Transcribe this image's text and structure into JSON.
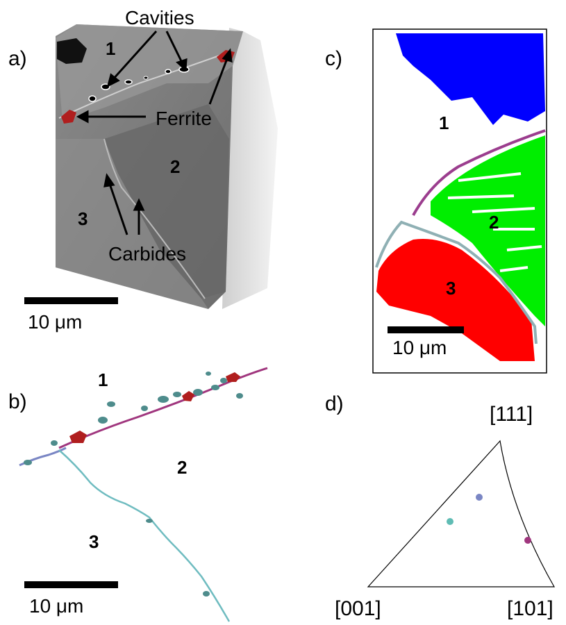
{
  "panel_a": {
    "letter": "a)",
    "annotations": {
      "cavities": "Cavities",
      "ferrite": "Ferrite",
      "carbides": "Carbides"
    },
    "regions": [
      "1",
      "2",
      "3"
    ],
    "scale_bar": "10 μm"
  },
  "panel_b": {
    "letter": "b)",
    "regions": [
      "1",
      "2",
      "3"
    ],
    "scale_bar": "10 μm"
  },
  "panel_c": {
    "letter": "c)",
    "regions": [
      "1",
      "2",
      "3"
    ],
    "scale_bar": "10 μm",
    "colors": {
      "grain_1": "#0000ff",
      "grain_2": "#00ee00",
      "grain_3": "#ff0000",
      "boundary_1_2": "#9b3d8e",
      "boundary_2_3": "#8fb0b4"
    }
  },
  "panel_d": {
    "letter": "d)",
    "directions": {
      "top": "[111]",
      "bottom_left": "[001]",
      "bottom_right": "[101]"
    },
    "points": [
      {
        "name": "boundary-blue",
        "color": "#7a86c4"
      },
      {
        "name": "boundary-teal",
        "color": "#5fbcb4"
      },
      {
        "name": "boundary-magenta",
        "color": "#a0367e"
      }
    ]
  }
}
